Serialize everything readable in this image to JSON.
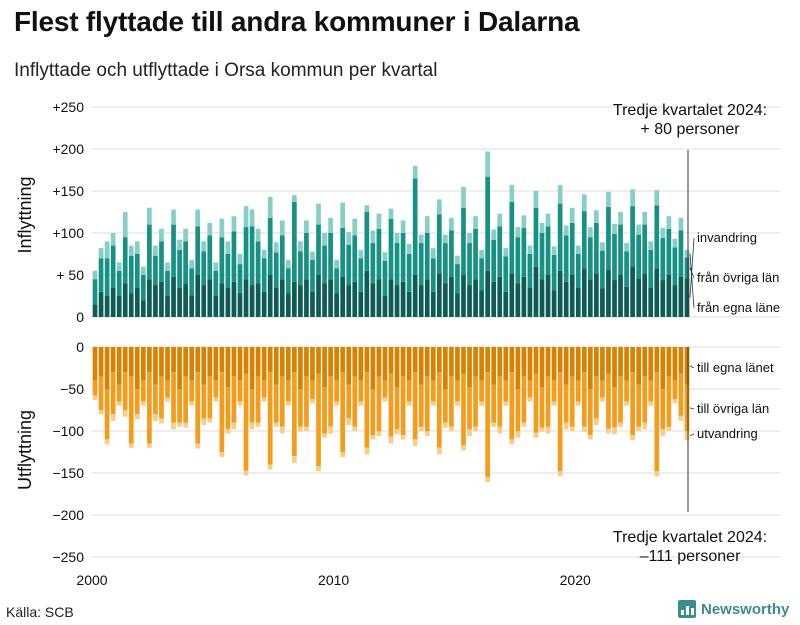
{
  "header": {
    "title": "Flest flyttade till andra kommuner i Dalarna",
    "subtitle": "Inflyttade och utflyttade i Orsa kommun per kvartal"
  },
  "footer": {
    "source": "Källa: SCB",
    "brand": "Newsworthy"
  },
  "colors": {
    "in_local": "#0d5c56",
    "in_other": "#179184",
    "in_foreign": "#86cfc6",
    "out_local": "#d98100",
    "out_other": "#f49c1b",
    "out_foreign": "#f8cd8a",
    "grid": "#dcdcdc",
    "brand": "#3a8f8b"
  },
  "chart_data": [
    {
      "type": "bar",
      "stacked": true,
      "ylabel": "Inflyttning",
      "ylim": [
        0,
        250
      ],
      "yticks": [
        0,
        50,
        100,
        150,
        200,
        250
      ],
      "ytick_labels": [
        "0",
        "+ 50",
        "+100",
        "+150",
        "+200",
        "+250"
      ],
      "annotation": [
        "Tredje kvartalet 2024:",
        "+ 80 personer"
      ],
      "series_labels": [
        "invandring",
        "från övriga län",
        "från egna läne"
      ],
      "x_start": "2000Q1",
      "x_end": "2024Q3",
      "series": [
        {
          "name": "från egna läne",
          "values": [
            15,
            30,
            25,
            35,
            25,
            40,
            28,
            35,
            20,
            45,
            38,
            42,
            25,
            48,
            35,
            40,
            26,
            50,
            38,
            45,
            25,
            40,
            35,
            42,
            28,
            45,
            38,
            40,
            30,
            50,
            35,
            45,
            28,
            42,
            38,
            45,
            30,
            50,
            40,
            45,
            28,
            48,
            38,
            42,
            30,
            55,
            40,
            45,
            25,
            45,
            38,
            42,
            30,
            50,
            38,
            45,
            30,
            52,
            40,
            48,
            28,
            50,
            38,
            45,
            32,
            55,
            42,
            48,
            30,
            52,
            40,
            48,
            35,
            60,
            45,
            50,
            32,
            55,
            42,
            50,
            35,
            58,
            45,
            52,
            34,
            56,
            44,
            50,
            36,
            60,
            46,
            52,
            35,
            58,
            44,
            50,
            38,
            48,
            46
          ]
        },
        {
          "name": "från övriga län",
          "values": [
            30,
            40,
            45,
            50,
            30,
            55,
            45,
            40,
            30,
            65,
            35,
            48,
            30,
            62,
            45,
            50,
            32,
            58,
            40,
            52,
            30,
            55,
            40,
            60,
            35,
            62,
            70,
            50,
            40,
            68,
            42,
            52,
            30,
            95,
            40,
            55,
            38,
            60,
            45,
            55,
            30,
            58,
            48,
            55,
            40,
            70,
            48,
            60,
            42,
            72,
            50,
            58,
            45,
            115,
            50,
            55,
            40,
            70,
            48,
            55,
            35,
            80,
            50,
            60,
            38,
            112,
            50,
            60,
            42,
            85,
            55,
            58,
            40,
            70,
            55,
            58,
            42,
            80,
            55,
            62,
            40,
            68,
            50,
            60,
            45,
            75,
            55,
            60,
            42,
            72,
            52,
            58,
            45,
            75,
            50,
            55,
            45,
            55,
            25
          ]
        },
        {
          "name": "invandring",
          "values": [
            10,
            12,
            20,
            15,
            10,
            30,
            12,
            15,
            10,
            20,
            12,
            15,
            10,
            18,
            12,
            15,
            10,
            20,
            12,
            15,
            10,
            22,
            15,
            18,
            12,
            25,
            20,
            15,
            10,
            25,
            12,
            18,
            10,
            8,
            12,
            15,
            10,
            25,
            15,
            18,
            10,
            30,
            15,
            20,
            10,
            8,
            15,
            18,
            10,
            12,
            12,
            15,
            12,
            15,
            10,
            20,
            12,
            18,
            10,
            15,
            10,
            25,
            12,
            15,
            10,
            30,
            12,
            15,
            10,
            20,
            12,
            15,
            10,
            20,
            12,
            15,
            10,
            22,
            12,
            18,
            10,
            20,
            12,
            15,
            10,
            18,
            12,
            15,
            10,
            20,
            12,
            15,
            10,
            18,
            12,
            15,
            10,
            15,
            9
          ]
        }
      ]
    },
    {
      "type": "bar",
      "stacked": true,
      "ylabel": "Utflyttning",
      "ylim": [
        -250,
        0
      ],
      "yticks": [
        0,
        -50,
        -100,
        -150,
        -200,
        -250
      ],
      "ytick_labels": [
        "0",
        "−50",
        "−100",
        "−150",
        "−200",
        "−250"
      ],
      "annotation": [
        "Tredje kvartalet 2024:",
        "–111 personer"
      ],
      "series_labels": [
        "till egna länet",
        "till övriga län",
        "utvandring"
      ],
      "x_start": "2000Q1",
      "x_end": "2024Q3",
      "series": [
        {
          "name": "till egna länet",
          "values": [
            -40,
            -35,
            -50,
            -30,
            -45,
            -30,
            -35,
            -50,
            -40,
            -30,
            -45,
            -35,
            -40,
            -30,
            -50,
            -35,
            -40,
            -30,
            -45,
            -35,
            -40,
            -30,
            -48,
            -35,
            -40,
            -32,
            -50,
            -35,
            -40,
            -30,
            -45,
            -35,
            -40,
            -30,
            -50,
            -35,
            -40,
            -32,
            -48,
            -35,
            -40,
            -30,
            -45,
            -35,
            -40,
            -30,
            -50,
            -35,
            -40,
            -32,
            -48,
            -35,
            -40,
            -30,
            -45,
            -35,
            -40,
            -30,
            -50,
            -35,
            -40,
            -32,
            -48,
            -35,
            -40,
            -30,
            -45,
            -35,
            -40,
            -30,
            -50,
            -35,
            -40,
            -32,
            -48,
            -35,
            -40,
            -30,
            -45,
            -35,
            -40,
            -30,
            -50,
            -35,
            -40,
            -32,
            -48,
            -35,
            -40,
            -30,
            -45,
            -35,
            -40,
            -30,
            -50,
            -35,
            -40,
            -32,
            -45
          ]
        },
        {
          "name": "till övriga län",
          "values": [
            -18,
            -40,
            -60,
            -50,
            -20,
            -45,
            -80,
            -30,
            -25,
            -85,
            -35,
            -50,
            -20,
            -60,
            -40,
            -55,
            -25,
            -85,
            -40,
            -50,
            -20,
            -95,
            -50,
            -55,
            -25,
            -115,
            -40,
            -55,
            -20,
            -110,
            -45,
            -60,
            -25,
            -100,
            -45,
            -60,
            -22,
            -110,
            -55,
            -60,
            -25,
            -95,
            -40,
            -60,
            -25,
            -90,
            -55,
            -65,
            -20,
            -75,
            -50,
            -70,
            -25,
            -80,
            -50,
            -65,
            -25,
            -90,
            -40,
            -60,
            -25,
            -85,
            -50,
            -60,
            -25,
            -125,
            -45,
            -60,
            -25,
            -80,
            -50,
            -55,
            -20,
            -70,
            -48,
            -60,
            -25,
            -118,
            -45,
            -60,
            -25,
            -65,
            -55,
            -50,
            -20,
            -65,
            -48,
            -55,
            -25,
            -75,
            -50,
            -55,
            -25,
            -118,
            -48,
            -60,
            -22,
            -50,
            -55
          ]
        },
        {
          "name": "utvandring",
          "values": [
            -5,
            -5,
            -6,
            -8,
            -5,
            -8,
            -5,
            -6,
            -5,
            -5,
            -8,
            -6,
            -5,
            -8,
            -5,
            -6,
            -5,
            -6,
            -8,
            -5,
            -5,
            -6,
            -5,
            -8,
            -5,
            -6,
            -8,
            -5,
            -5,
            -6,
            -5,
            -8,
            -5,
            -8,
            -6,
            -5,
            -5,
            -6,
            -5,
            -8,
            -5,
            -6,
            -8,
            -5,
            -5,
            -8,
            -5,
            -6,
            -5,
            -8,
            -6,
            -5,
            -5,
            -8,
            -5,
            -6,
            -5,
            -8,
            -6,
            -5,
            -5,
            -6,
            -8,
            -5,
            -5,
            -6,
            -5,
            -8,
            -5,
            -6,
            -8,
            -5,
            -5,
            -6,
            -5,
            -8,
            -5,
            -6,
            -8,
            -5,
            -5,
            -6,
            -5,
            -8,
            -5,
            -6,
            -8,
            -5,
            -5,
            -6,
            -5,
            -8,
            -5,
            -6,
            -8,
            -5,
            -5,
            -6,
            -11
          ]
        }
      ]
    }
  ],
  "x_axis": {
    "ticks": [
      2000,
      2010,
      2020
    ]
  }
}
